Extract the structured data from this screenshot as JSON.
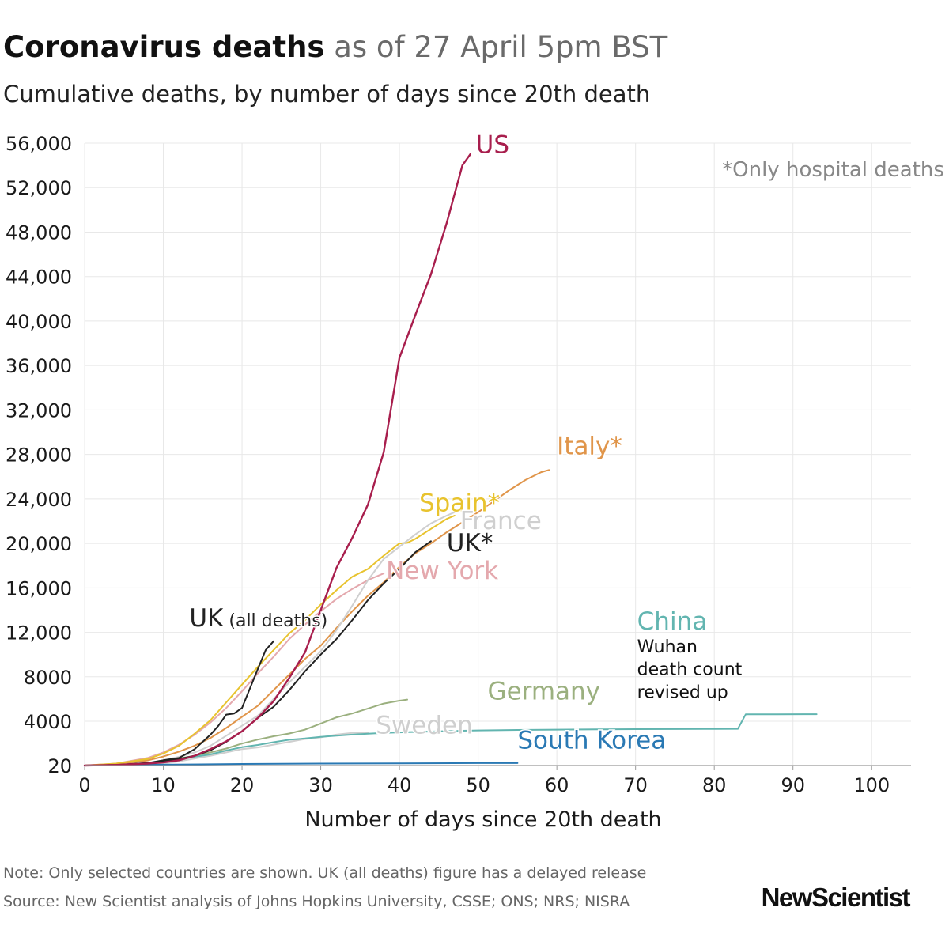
{
  "header": {
    "title_bold": "Coronavirus deaths",
    "title_light": " as of 27 April 5pm BST",
    "subtitle": "Cumulative deaths, by number of days since 20th death"
  },
  "footer": {
    "note": "Note: Only selected countries are shown. UK (all deaths) figure has a delayed release",
    "source": "Source: New Scientist analysis of Johns Hopkins University, CSSE; ONS; NRS; NISRA",
    "brand": "NewScientist"
  },
  "chart_data": {
    "type": "line",
    "xlabel": "Number of days since 20th death",
    "ylabel": "",
    "xlim": [
      0,
      105
    ],
    "ylim": [
      20,
      56000
    ],
    "x_ticks": [
      0,
      10,
      20,
      30,
      40,
      50,
      60,
      70,
      80,
      90,
      100
    ],
    "x_tick_labels": [
      "0",
      "10",
      "20",
      "30",
      "40",
      "50",
      "60",
      "70",
      "80",
      "90",
      "100"
    ],
    "y_ticks": [
      20,
      4000,
      8000,
      12000,
      16000,
      20000,
      24000,
      28000,
      32000,
      36000,
      40000,
      44000,
      48000,
      52000,
      56000
    ],
    "y_tick_labels": [
      "20",
      "4000",
      "8000",
      "12,000",
      "16,000",
      "20,000",
      "24,000",
      "28,000",
      "32,000",
      "36,000",
      "40,000",
      "44,000",
      "48,000",
      "52,000",
      "56,000"
    ],
    "grid": true,
    "annotations": [
      {
        "text": "*Only hospital deaths",
        "x": 81,
        "y": 53000,
        "color": "#888888"
      },
      {
        "text": "Wuhan",
        "x": 70.2,
        "y": 10200,
        "color": "#111111"
      },
      {
        "text": "death count",
        "x": 70.2,
        "y": 8150,
        "color": "#111111"
      },
      {
        "text": "revised up",
        "x": 70.2,
        "y": 6100,
        "color": "#111111"
      }
    ],
    "series": [
      {
        "name": "Germany",
        "color": "#9bb07f",
        "label_x": 51.2,
        "label_y": 5950,
        "x": [
          0,
          4,
          8,
          10,
          12,
          14,
          16,
          18,
          20,
          22,
          24,
          26,
          28,
          30,
          32,
          34,
          36,
          38,
          40,
          41
        ],
        "y": [
          20,
          60,
          200,
          380,
          650,
          900,
          1200,
          1550,
          2000,
          2350,
          2650,
          2900,
          3250,
          3800,
          4350,
          4700,
          5150,
          5600,
          5850,
          5950
        ]
      },
      {
        "name": "Sweden",
        "color": "#cfcfcf",
        "label_x": 37,
        "label_y": 2900,
        "x": [
          0,
          4,
          8,
          10,
          12,
          14,
          16,
          18,
          20,
          22,
          24,
          26,
          28,
          30,
          32,
          34,
          36
        ],
        "y": [
          20,
          40,
          110,
          200,
          400,
          650,
          900,
          1200,
          1500,
          1650,
          1900,
          2150,
          2400,
          2550,
          2800,
          2950,
          3000
        ]
      },
      {
        "name": "South Korea",
        "color": "#2a79b4",
        "label_x": 55,
        "label_y": 1550,
        "x": [
          0,
          10,
          20,
          30,
          40,
          50,
          55
        ],
        "y": [
          20,
          100,
          160,
          200,
          220,
          240,
          244
        ]
      },
      {
        "name": "China",
        "color": "#62b5b0",
        "label_x": 70.2,
        "label_y": 12250,
        "x": [
          0,
          4,
          8,
          10,
          12,
          14,
          16,
          18,
          20,
          22,
          24,
          26,
          28,
          30,
          32,
          34,
          36,
          38,
          40,
          44,
          48,
          50,
          55,
          60,
          65,
          70,
          75,
          80,
          83,
          84,
          88,
          93
        ],
        "y": [
          20,
          60,
          210,
          360,
          560,
          810,
          1020,
          1370,
          1670,
          1870,
          2120,
          2340,
          2450,
          2600,
          2710,
          2800,
          2880,
          2950,
          3000,
          3080,
          3150,
          3180,
          3220,
          3250,
          3270,
          3290,
          3300,
          3310,
          3320,
          4630,
          4630,
          4633
        ]
      },
      {
        "name": "New York",
        "color": "#e4a8ad",
        "label_x": 38.3,
        "label_y": 16800,
        "x": [
          0,
          4,
          8,
          10,
          12,
          14,
          16,
          18,
          20,
          22,
          24,
          26,
          28,
          30,
          32,
          34,
          36,
          38
        ],
        "y": [
          20,
          200,
          700,
          1200,
          1900,
          2800,
          3900,
          5200,
          6700,
          8300,
          9800,
          11400,
          12700,
          13900,
          15000,
          15900,
          16700,
          17300
        ]
      },
      {
        "name": "Italy*",
        "color": "#e0954a",
        "label_x": 60,
        "label_y": 28000,
        "x": [
          0,
          4,
          8,
          10,
          12,
          14,
          16,
          18,
          20,
          22,
          24,
          26,
          28,
          30,
          32,
          34,
          36,
          38,
          40,
          42,
          44,
          46,
          48,
          50,
          52,
          54,
          56,
          58,
          59
        ],
        "y": [
          20,
          100,
          480,
          830,
          1270,
          1810,
          2500,
          3400,
          4400,
          5400,
          6800,
          8200,
          9600,
          10800,
          12400,
          13900,
          15300,
          16500,
          17900,
          19100,
          20000,
          21000,
          21900,
          22800,
          23800,
          24800,
          25700,
          26400,
          26600
        ]
      },
      {
        "name": "Spain*",
        "color": "#e8c32e",
        "label_x": 42.5,
        "label_y": 22900,
        "x": [
          0,
          4,
          8,
          10,
          12,
          14,
          16,
          18,
          20,
          22,
          24,
          26,
          28,
          30,
          32,
          34,
          36,
          38,
          40,
          41,
          42,
          44,
          46,
          47
        ],
        "y": [
          20,
          200,
          600,
          1100,
          1800,
          2900,
          4100,
          5700,
          7300,
          8900,
          10400,
          11900,
          13100,
          14500,
          15800,
          17000,
          17700,
          18900,
          20000,
          20050,
          20400,
          21300,
          22200,
          22500
        ]
      },
      {
        "name": "France",
        "color": "#cfcfcf",
        "label_x": 47.7,
        "label_y": 21300,
        "x": [
          0,
          4,
          8,
          10,
          12,
          14,
          16,
          18,
          20,
          22,
          24,
          26,
          28,
          30,
          32,
          34,
          36,
          38,
          40,
          42,
          44,
          46,
          47
        ],
        "y": [
          20,
          80,
          260,
          500,
          800,
          1200,
          1800,
          2700,
          3600,
          4500,
          6000,
          7500,
          8900,
          10300,
          12200,
          14400,
          16700,
          18600,
          19700,
          20800,
          21800,
          22500,
          22800
        ]
      },
      {
        "name": "UK*",
        "color": "#222222",
        "label_x": 46,
        "label_y": 19300,
        "x": [
          0,
          4,
          8,
          10,
          12,
          14,
          16,
          18,
          20,
          22,
          24,
          26,
          28,
          30,
          32,
          34,
          36,
          38,
          40,
          42,
          44
        ],
        "y": [
          20,
          80,
          230,
          430,
          600,
          900,
          1400,
          2150,
          3100,
          4300,
          5300,
          6800,
          8500,
          10000,
          11400,
          13100,
          14900,
          16400,
          17700,
          19200,
          20200
        ]
      },
      {
        "name": "UK (all deaths)",
        "color": "#222222",
        "label_x": 13.3,
        "label_y": 12550,
        "x": [
          0,
          4,
          8,
          10,
          12,
          14,
          16,
          17,
          18,
          19,
          20,
          22,
          23,
          24
        ],
        "y": [
          20,
          80,
          250,
          500,
          700,
          1500,
          2800,
          3600,
          4600,
          4700,
          5200,
          8700,
          10400,
          11200
        ]
      },
      {
        "name": "US",
        "color": "#a81e4d",
        "label_x": 49.7,
        "label_y": 55100,
        "x": [
          0,
          4,
          8,
          10,
          12,
          14,
          16,
          18,
          20,
          22,
          24,
          26,
          28,
          30,
          32,
          34,
          36,
          38,
          40,
          42,
          44,
          46,
          48,
          49
        ],
        "y": [
          20,
          80,
          200,
          300,
          500,
          900,
          1500,
          2200,
          3100,
          4300,
          5800,
          7900,
          10200,
          14000,
          17800,
          20500,
          23500,
          28200,
          36700,
          40500,
          44200,
          48800,
          54000,
          55000
        ]
      }
    ]
  }
}
